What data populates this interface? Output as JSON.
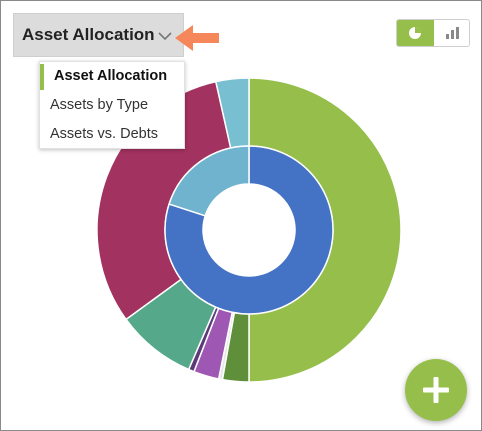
{
  "colors": {
    "accent": "#95bf4a",
    "selector_bg": "#dcdcdc",
    "annotation_arrow": "#f5875a",
    "toggle_active_bg": "#95bf4a"
  },
  "selector": {
    "label": "Asset Allocation",
    "icon": "chevron-down-icon"
  },
  "dropdown": {
    "items": [
      {
        "label": "Asset Allocation",
        "selected": true
      },
      {
        "label": "Assets by Type",
        "selected": false
      },
      {
        "label": "Assets vs. Debts",
        "selected": false
      }
    ]
  },
  "view_toggle": {
    "pie_icon": "pie-chart-icon",
    "bar_icon": "bar-chart-icon",
    "active": "pie"
  },
  "fab": {
    "icon": "plus-icon"
  },
  "chart_data": {
    "type": "pie",
    "subtype": "nested-donut",
    "outer_ring": [
      {
        "value": 50.0,
        "color": "#95bf4a"
      },
      {
        "value": 2.8,
        "color": "#5f8f3a"
      },
      {
        "value": 0.4,
        "color": "#e8e8e8"
      },
      {
        "value": 2.7,
        "color": "#9e57b3"
      },
      {
        "value": 0.6,
        "color": "#5c3a7a"
      },
      {
        "value": 8.5,
        "color": "#55a98a"
      },
      {
        "value": 31.5,
        "color": "#a2325f"
      },
      {
        "value": 3.5,
        "color": "#78bfd2"
      }
    ],
    "inner_ring": [
      {
        "value": 80.0,
        "color": "#4472c4"
      },
      {
        "value": 20.0,
        "color": "#6fb3cf"
      }
    ]
  }
}
